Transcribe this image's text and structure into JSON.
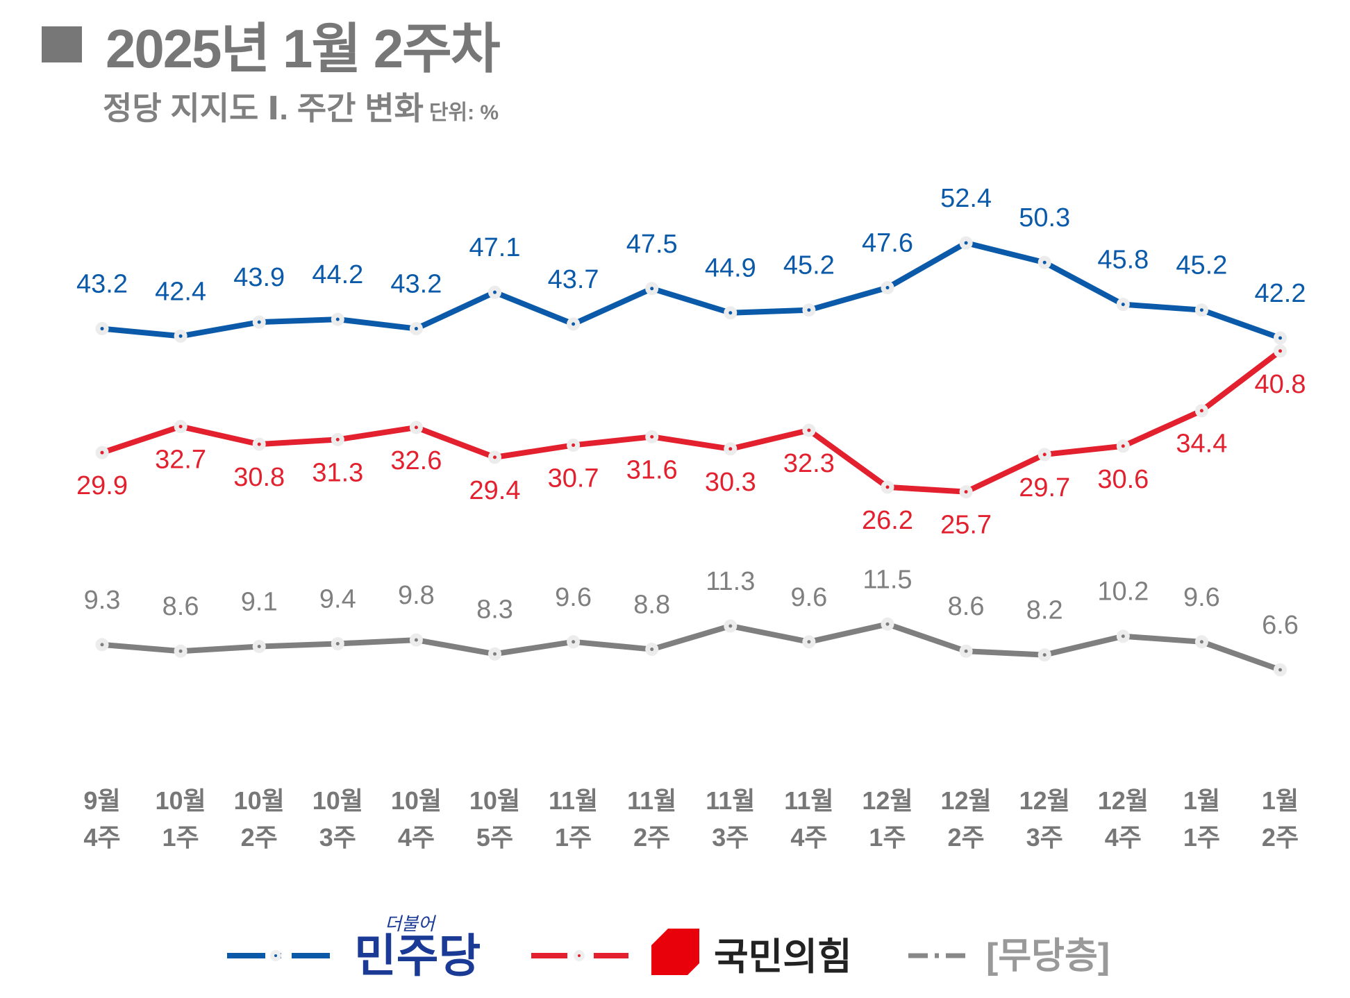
{
  "header": {
    "title": "2025년 1월 2주차",
    "subtitle": "정당 지지도 Ⅰ. 주간 변화",
    "unit": "단위: %"
  },
  "chart_data": {
    "type": "line",
    "categories": [
      [
        "9월",
        "4주"
      ],
      [
        "10월",
        "1주"
      ],
      [
        "10월",
        "2주"
      ],
      [
        "10월",
        "3주"
      ],
      [
        "10월",
        "4주"
      ],
      [
        "10월",
        "5주"
      ],
      [
        "11월",
        "1주"
      ],
      [
        "11월",
        "2주"
      ],
      [
        "11월",
        "3주"
      ],
      [
        "11월",
        "4주"
      ],
      [
        "12월",
        "1주"
      ],
      [
        "12월",
        "2주"
      ],
      [
        "12월",
        "3주"
      ],
      [
        "12월",
        "4주"
      ],
      [
        "1월",
        "1주"
      ],
      [
        "1월",
        "2주"
      ]
    ],
    "series": [
      {
        "name": "더불어민주당",
        "color": "#0B5AAA",
        "values": [
          43.2,
          42.4,
          43.9,
          44.2,
          43.2,
          47.1,
          43.7,
          47.5,
          44.9,
          45.2,
          47.6,
          52.4,
          50.3,
          45.8,
          45.2,
          42.2
        ]
      },
      {
        "name": "국민의힘",
        "color": "#E3202E",
        "values": [
          29.9,
          32.7,
          30.8,
          31.3,
          32.6,
          29.4,
          30.7,
          31.6,
          30.3,
          32.3,
          26.2,
          25.7,
          29.7,
          30.6,
          34.4,
          40.8
        ]
      },
      {
        "name": "[무당층]",
        "color": "#7F7F7F",
        "values": [
          9.3,
          8.6,
          9.1,
          9.4,
          9.8,
          8.3,
          9.6,
          8.8,
          11.3,
          9.6,
          11.5,
          8.6,
          8.2,
          10.2,
          9.6,
          6.6
        ]
      }
    ],
    "legend_position": "bottom",
    "grid": false
  },
  "legend": {
    "dem_sub": "더불어",
    "dem": "민주당",
    "ppp": "국민의힘",
    "ind": "[무당층]",
    "dem_color": "#1A3A95",
    "ppp_logo_color": "#E8000B"
  }
}
